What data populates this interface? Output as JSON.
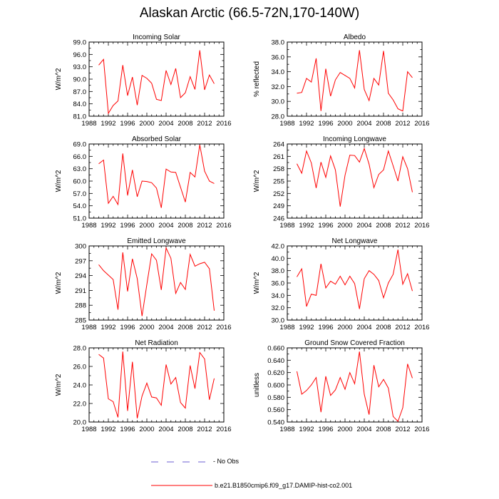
{
  "figure": {
    "title": "Alaskan Arctic (66.5-72N,170-140W)"
  },
  "legend": {
    "obs_label": "- No Obs",
    "model_label": "b.e21.B1850cmip6.f09_g17.DAMIP-hist-co2.001",
    "obs_color": "#6b5fd3",
    "model_color": "#ff0000"
  },
  "chart_data": [
    {
      "type": "line",
      "title": "Incoming Solar",
      "ylabel": "W/m^2",
      "xlim": [
        1988,
        2016
      ],
      "ylim": [
        81,
        99
      ],
      "xticks": [
        1988,
        1992,
        1996,
        2000,
        2004,
        2008,
        2012,
        2016
      ],
      "yticks": [
        "81.0",
        "84.0",
        "87.0",
        "90.0",
        "93.0",
        "96.0",
        "99.0"
      ],
      "x": [
        1990,
        1991,
        1992,
        1993,
        1994,
        1995,
        1996,
        1997,
        1998,
        1999,
        2000,
        2001,
        2002,
        2003,
        2004,
        2005,
        2006,
        2007,
        2008,
        2009,
        2010,
        2011,
        2012,
        2013,
        2014
      ],
      "series": [
        {
          "color": "#ff0000",
          "values": [
            93.4,
            94.8,
            81.7,
            83.6,
            84.7,
            93.4,
            86.0,
            90.5,
            83.7,
            90.9,
            90.2,
            89.0,
            85.1,
            84.8,
            92.1,
            88.7,
            92.6,
            85.5,
            86.7,
            90.6,
            87.5,
            97.0,
            87.4,
            91.0,
            88.9
          ]
        }
      ]
    },
    {
      "type": "line",
      "title": "Albedo",
      "ylabel": "% reflected",
      "xlim": [
        1988,
        2016
      ],
      "ylim": [
        28,
        38
      ],
      "xticks": [
        1988,
        1992,
        1996,
        2000,
        2004,
        2008,
        2012,
        2016
      ],
      "yticks": [
        "28.0",
        "30.0",
        "32.0",
        "34.0",
        "36.0",
        "38.0"
      ],
      "x": [
        1990,
        1991,
        1992,
        1993,
        1994,
        1995,
        1996,
        1997,
        1998,
        1999,
        2000,
        2001,
        2002,
        2003,
        2004,
        2005,
        2006,
        2007,
        2008,
        2009,
        2010,
        2011,
        2012,
        2013,
        2014
      ],
      "series": [
        {
          "color": "#ff0000",
          "values": [
            31.1,
            31.2,
            33.1,
            32.6,
            35.8,
            28.7,
            34.4,
            30.7,
            32.9,
            33.9,
            33.5,
            33.1,
            31.8,
            36.9,
            31.6,
            30.1,
            33.1,
            32.2,
            36.8,
            31.1,
            30.2,
            29.0,
            28.7,
            34.0,
            33.2
          ]
        }
      ]
    },
    {
      "type": "line",
      "title": "Absorbed Solar",
      "ylabel": "W/m^2",
      "xlim": [
        1988,
        2016
      ],
      "ylim": [
        51,
        69
      ],
      "xticks": [
        1988,
        1992,
        1996,
        2000,
        2004,
        2008,
        2012,
        2016
      ],
      "yticks": [
        "51.0",
        "54.0",
        "57.0",
        "60.0",
        "63.0",
        "66.0",
        "69.0"
      ],
      "x": [
        1990,
        1991,
        1992,
        1993,
        1994,
        1995,
        1996,
        1997,
        1998,
        1999,
        2000,
        2001,
        2002,
        2003,
        2004,
        2005,
        2006,
        2007,
        2008,
        2009,
        2010,
        2011,
        2012,
        2013,
        2014
      ],
      "series": [
        {
          "color": "#ff0000",
          "values": [
            64.2,
            65.1,
            54.6,
            56.3,
            54.3,
            66.7,
            56.5,
            62.7,
            56.2,
            60.0,
            59.9,
            59.6,
            58.3,
            53.5,
            62.9,
            62.2,
            62.1,
            58.5,
            54.9,
            62.1,
            61.0,
            68.8,
            62.4,
            60.0,
            59.4
          ]
        }
      ]
    },
    {
      "type": "line",
      "title": "Incoming Longwave",
      "ylabel": "W/m^2",
      "xlim": [
        1988,
        2016
      ],
      "ylim": [
        246,
        264
      ],
      "xticks": [
        1988,
        1992,
        1996,
        2000,
        2004,
        2008,
        2012,
        2016
      ],
      "yticks": [
        "246",
        "249",
        "252",
        "255",
        "258",
        "261",
        "264"
      ],
      "x": [
        1990,
        1991,
        1992,
        1993,
        1994,
        1995,
        1996,
        1997,
        1998,
        1999,
        2000,
        2001,
        2002,
        2003,
        2004,
        2005,
        2006,
        2007,
        2008,
        2009,
        2010,
        2011,
        2012,
        2013,
        2014
      ],
      "series": [
        {
          "color": "#ff0000",
          "values": [
            259.2,
            256.9,
            262.3,
            259.4,
            253.3,
            259.6,
            255.9,
            261.1,
            257.7,
            248.8,
            256.4,
            261.3,
            261.2,
            259.6,
            262.9,
            259.1,
            253.4,
            256.6,
            257.7,
            262.3,
            258.7,
            255.0,
            260.9,
            258.0,
            252.3
          ]
        }
      ]
    },
    {
      "type": "line",
      "title": "Emitted Longwave",
      "ylabel": "W/m^2",
      "xlim": [
        1988,
        2016
      ],
      "ylim": [
        285,
        300
      ],
      "xticks": [
        1988,
        1992,
        1996,
        2000,
        2004,
        2008,
        2012,
        2016
      ],
      "yticks": [
        "285",
        "288",
        "291",
        "294",
        "297",
        "300"
      ],
      "x": [
        1990,
        1991,
        1992,
        1993,
        1994,
        1995,
        1996,
        1997,
        1998,
        1999,
        2000,
        2001,
        2002,
        2003,
        2004,
        2005,
        2006,
        2007,
        2008,
        2009,
        2010,
        2011,
        2012,
        2013,
        2014
      ],
      "series": [
        {
          "color": "#ff0000",
          "values": [
            296.2,
            295.0,
            294.1,
            293.2,
            287.1,
            298.7,
            290.8,
            297.4,
            293.4,
            285.8,
            292.2,
            298.4,
            297.1,
            291.1,
            299.6,
            297.5,
            290.4,
            292.6,
            291.2,
            298.3,
            295.9,
            296.4,
            296.7,
            295.4,
            286.9
          ]
        }
      ]
    },
    {
      "type": "line",
      "title": "Net Longwave",
      "ylabel": "W/m^2",
      "xlim": [
        1988,
        2016
      ],
      "ylim": [
        30,
        42
      ],
      "xticks": [
        1988,
        1992,
        1996,
        2000,
        2004,
        2008,
        2012,
        2016
      ],
      "yticks": [
        "30.0",
        "32.0",
        "34.0",
        "36.0",
        "38.0",
        "40.0",
        "42.0"
      ],
      "x": [
        1990,
        1991,
        1992,
        1993,
        1994,
        1995,
        1996,
        1997,
        1998,
        1999,
        2000,
        2001,
        2002,
        2003,
        2004,
        2005,
        2006,
        2007,
        2008,
        2009,
        2010,
        2011,
        2012,
        2013,
        2014
      ],
      "series": [
        {
          "color": "#ff0000",
          "values": [
            37.0,
            38.3,
            32.2,
            34.2,
            34.0,
            39.1,
            35.2,
            36.3,
            35.8,
            37.1,
            35.7,
            37.1,
            35.9,
            31.8,
            36.7,
            38.0,
            37.4,
            36.4,
            33.6,
            36.0,
            37.4,
            41.4,
            35.8,
            37.5,
            34.7
          ]
        }
      ]
    },
    {
      "type": "line",
      "title": "Net Radiation",
      "ylabel": "W/m^2",
      "xlim": [
        1988,
        2016
      ],
      "ylim": [
        20,
        28
      ],
      "xticks": [
        1988,
        1992,
        1996,
        2000,
        2004,
        2008,
        2012,
        2016
      ],
      "yticks": [
        "20.0",
        "22.0",
        "24.0",
        "26.0",
        "28.0"
      ],
      "x": [
        1990,
        1991,
        1992,
        1993,
        1994,
        1995,
        1996,
        1997,
        1998,
        1999,
        2000,
        2001,
        2002,
        2003,
        2004,
        2005,
        2006,
        2007,
        2008,
        2009,
        2010,
        2011,
        2012,
        2013,
        2014
      ],
      "series": [
        {
          "color": "#ff0000",
          "values": [
            27.3,
            26.9,
            22.5,
            22.2,
            20.5,
            27.6,
            21.2,
            26.5,
            20.4,
            22.8,
            24.2,
            22.7,
            22.6,
            21.8,
            26.2,
            24.1,
            24.8,
            22.1,
            21.5,
            26.1,
            23.6,
            27.5,
            26.8,
            22.4,
            24.7
          ]
        }
      ]
    },
    {
      "type": "line",
      "title": "Ground Snow Covered Fraction",
      "ylabel": "unitless",
      "xlim": [
        1988,
        2016
      ],
      "ylim": [
        0.54,
        0.66
      ],
      "xticks": [
        1988,
        1992,
        1996,
        2000,
        2004,
        2008,
        2012,
        2016
      ],
      "yticks": [
        "0.540",
        "0.560",
        "0.580",
        "0.600",
        "0.620",
        "0.640",
        "0.660"
      ],
      "x": [
        1990,
        1991,
        1992,
        1993,
        1994,
        1995,
        1996,
        1997,
        1998,
        1999,
        2000,
        2001,
        2002,
        2003,
        2004,
        2005,
        2006,
        2007,
        2008,
        2009,
        2010,
        2011,
        2012,
        2013,
        2014
      ],
      "series": [
        {
          "color": "#ff0000",
          "values": [
            0.622,
            0.585,
            0.591,
            0.6,
            0.612,
            0.556,
            0.614,
            0.583,
            0.592,
            0.612,
            0.593,
            0.62,
            0.602,
            0.654,
            0.585,
            0.552,
            0.632,
            0.597,
            0.609,
            0.595,
            0.549,
            0.541,
            0.563,
            0.634,
            0.611
          ]
        }
      ]
    }
  ]
}
